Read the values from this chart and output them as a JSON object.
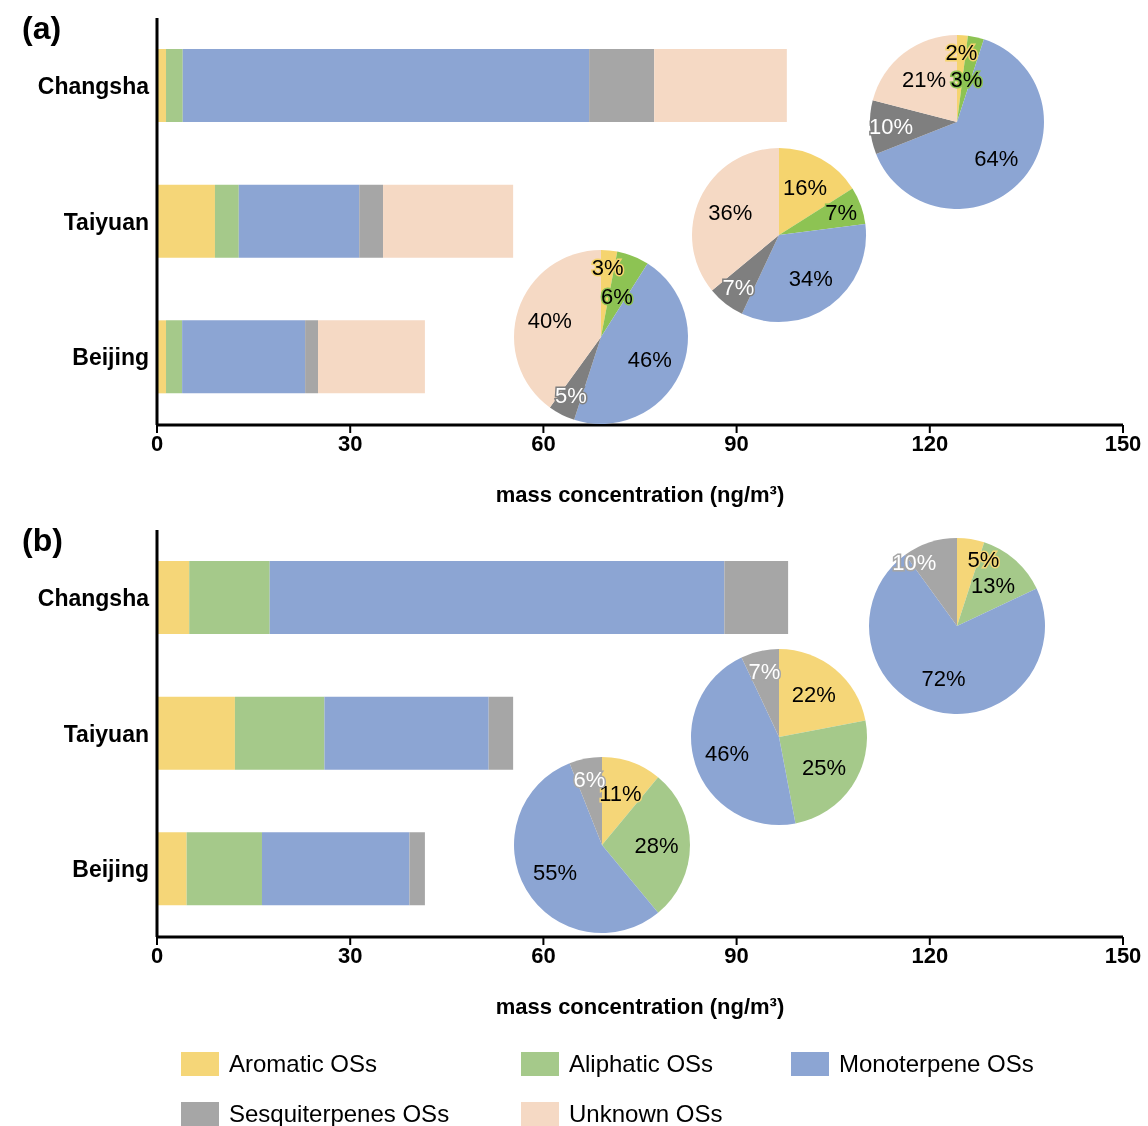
{
  "chart_data": [
    {
      "type": "bar",
      "title": "(a)",
      "orientation": "horizontal",
      "stacked": true,
      "categories": [
        "Changsha",
        "Taiyuan",
        "Beijing"
      ],
      "xlabel": "mass concentration (ng/m³)",
      "xlim": [
        0,
        150
      ],
      "xticks": [
        0,
        30,
        60,
        90,
        120,
        150
      ],
      "legend": "bottom",
      "series": [
        {
          "name": "Aromatic OSs",
          "color": "#f5d678",
          "values": [
            1.4,
            9.0,
            1.4
          ]
        },
        {
          "name": "Aliphatic OSs",
          "color": "#a5c98a",
          "values": [
            2.6,
            3.7,
            2.5
          ]
        },
        {
          "name": "Monoterpene OSs",
          "color": "#8ca5d3",
          "values": [
            63.1,
            18.7,
            19.1
          ]
        },
        {
          "name": "Sesquiterpenes OSs",
          "color": "#a6a6a6",
          "values": [
            10.1,
            3.7,
            2.0
          ]
        },
        {
          "name": "Unknown OSs",
          "color": "#f5d9c4",
          "values": [
            20.6,
            20.2,
            16.6
          ]
        }
      ]
    },
    {
      "type": "pie",
      "categories": [
        null,
        null,
        null,
        null,
        null
      ],
      "values": [
        3,
        6,
        46,
        5,
        40
      ],
      "value_labels": [
        "3%",
        "6%",
        "46%",
        "5%",
        "40%"
      ],
      "colors": [
        "#f5d46e",
        "#8dc353",
        "#8ca5d3",
        "#7f7f7f",
        "#f5d9c4"
      ]
    },
    {
      "type": "pie",
      "categories": [
        null,
        null,
        null,
        null,
        null
      ],
      "values": [
        16,
        7,
        34,
        7,
        36
      ],
      "value_labels": [
        "16%",
        "7%",
        "34%",
        "7%",
        "36%"
      ],
      "colors": [
        "#f5d46e",
        "#8dc353",
        "#8ca5d3",
        "#7f7f7f",
        "#f5d9c4"
      ]
    },
    {
      "type": "pie",
      "categories": [
        null,
        null,
        null,
        null,
        null
      ],
      "values": [
        2,
        3,
        64,
        10,
        21
      ],
      "value_labels": [
        "2%",
        "3%",
        "64%",
        "10%",
        "21%"
      ],
      "colors": [
        "#f5d46e",
        "#8dc353",
        "#8ca5d3",
        "#7f7f7f",
        "#f5d9c4"
      ]
    },
    {
      "type": "bar",
      "title": "(b)",
      "orientation": "horizontal",
      "stacked": true,
      "categories": [
        "Changsha",
        "Taiyuan",
        "Beijing"
      ],
      "xlabel": "mass concentration (ng/m³)",
      "xlim": [
        0,
        150
      ],
      "xticks": [
        0,
        30,
        60,
        90,
        120,
        150
      ],
      "series": [
        {
          "color": "#f5d678",
          "values": [
            5.0,
            12.1,
            4.6
          ]
        },
        {
          "color": "#a5c98a",
          "values": [
            12.5,
            13.9,
            11.7
          ]
        },
        {
          "color": "#8ca5d3",
          "values": [
            70.6,
            25.5,
            22.9
          ]
        },
        {
          "color": "#a6a6a6",
          "values": [
            9.9,
            3.8,
            2.4
          ]
        }
      ]
    },
    {
      "type": "pie",
      "categories": [
        null,
        null,
        null,
        null
      ],
      "values": [
        11,
        28,
        55,
        6
      ],
      "value_labels": [
        "11%",
        "28%",
        "55%",
        "6%"
      ],
      "colors": [
        "#f5d678",
        "#a5c98a",
        "#8ca5d3",
        "#a6a6a6"
      ]
    },
    {
      "type": "pie",
      "categories": [
        null,
        null,
        null,
        null
      ],
      "values": [
        22,
        25,
        46,
        7
      ],
      "value_labels": [
        "22%",
        "25%",
        "46%",
        "7%"
      ],
      "colors": [
        "#f5d678",
        "#a5c98a",
        "#8ca5d3",
        "#a6a6a6"
      ]
    },
    {
      "type": "pie",
      "categories": [
        null,
        null,
        null,
        null
      ],
      "values": [
        5,
        13,
        72,
        10
      ],
      "value_labels": [
        "5%",
        "13%",
        "72%",
        "10%"
      ],
      "colors": [
        "#f5d678",
        "#a5c98a",
        "#8ca5d3",
        "#a6a6a6"
      ]
    }
  ]
}
